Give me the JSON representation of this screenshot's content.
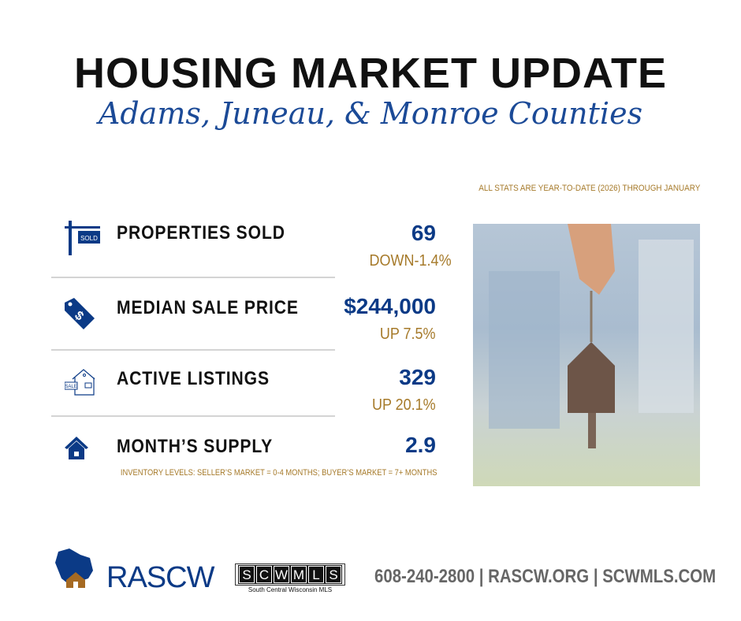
{
  "header": {
    "title": "HOUSING MARKET UPDATE",
    "subtitle": "Adams, Juneau, & Monroe Counties",
    "note": "ALL STATS ARE YEAR-TO-DATE (2026) THROUGH JANUARY"
  },
  "stats": [
    {
      "label": "PROPERTIES SOLD",
      "value": "69",
      "change": "DOWN-1.4%",
      "icon": "sold-sign-icon"
    },
    {
      "label": "MEDIAN SALE PRICE",
      "value": "$244,000",
      "change": "UP 7.5%",
      "icon": "price-tag-icon"
    },
    {
      "label": "ACTIVE LISTINGS",
      "value": "329",
      "change": "UP 20.1%",
      "icon": "house-for-sale-icon"
    },
    {
      "label": "MONTH’S SUPPLY",
      "value": "2.9",
      "icon": "home-icon"
    }
  ],
  "supply_note": "INVENTORY LEVELS: SELLER’S MARKET = 0-4 MONTHS; BUYER’S MARKET = 7+ MONTHS",
  "footer": {
    "rascw": "RASCW",
    "scwmls_letters": [
      "S",
      "C",
      "W",
      "M",
      "L",
      "S"
    ],
    "scwmls_sub": "South Central Wisconsin MLS",
    "sign_sold": "SOLD",
    "sign_sale": "SALE",
    "contact": "608-240-2800 | RASCW.ORG | SCWMLS.COM"
  },
  "colors": {
    "navy": "#0b3a86",
    "gold": "#a67a2a",
    "gray": "#666666"
  }
}
